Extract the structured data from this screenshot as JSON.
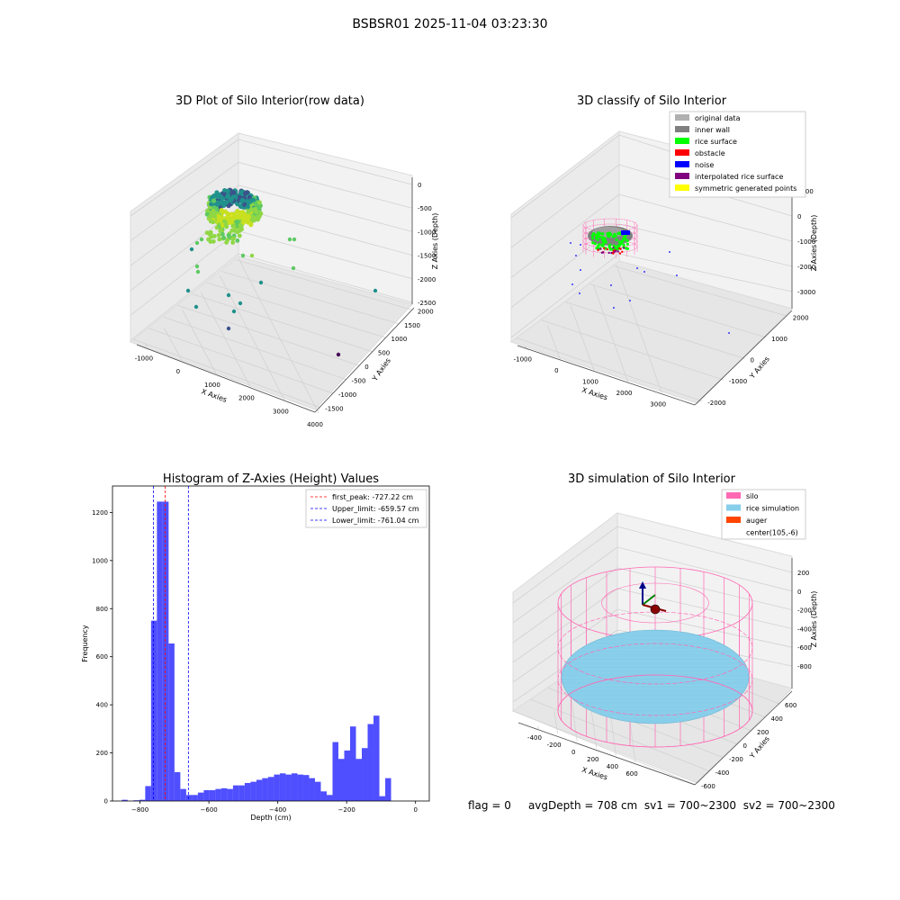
{
  "suptitle": "BSBSR01 2025-11-04 03:23:30",
  "footer": {
    "flag": "flag = 0",
    "avg_depth": "avgDepth = 708 cm",
    "sv1": "sv1 = 700~2300",
    "sv2": "sv2 = 700~2300"
  },
  "colors": {
    "hist_bar": "#4f4fff",
    "first_peak_line": "#ff0000",
    "limit_lines": "#0000ff",
    "silo_wire": "#ff69b4",
    "rice_simulation": "#87ceeb",
    "auger": "#ff4500",
    "pane": "#f0f0f0",
    "grid": "#d0d0d0"
  },
  "chart_data": [
    {
      "type": "scatter",
      "title": "3D Plot of Silo Interior(row data)",
      "xlabel": "X Axies",
      "ylabel": "Y Axies",
      "zlabel": "Z Axies (Depth)",
      "x_ticks": [
        "-1000",
        "0",
        "1000",
        "2000",
        "3000",
        "4000"
      ],
      "y_ticks": [
        "-1500",
        "-1000",
        "-500",
        "0",
        "500",
        "1000",
        "1500",
        "2000"
      ],
      "z_ticks": [
        "0",
        "-500",
        "-1000",
        "-1500",
        "-2000",
        "-2500"
      ],
      "colormap": "viridis",
      "note_points": "dense ring cluster near (0,0,-800) plus sparse outliers"
    },
    {
      "type": "scatter",
      "title": "3D classify of Silo Interior",
      "xlabel": "X Axies",
      "ylabel": "Y Axies",
      "zlabel": "Z Axies (Depth)",
      "x_ticks": [
        "-1000",
        "0",
        "1000",
        "2000",
        "3000"
      ],
      "y_ticks": [
        "-2000",
        "-1000",
        "0",
        "1000",
        "2000"
      ],
      "z_ticks": [
        "1000",
        "0",
        "-1000",
        "-2000",
        "-3000"
      ],
      "legend_position": "top-right",
      "legend": [
        {
          "label": "original data",
          "color": "#b0b0b0"
        },
        {
          "label": "inner wall",
          "color": "#808080"
        },
        {
          "label": "rice surface",
          "color": "#00ff00"
        },
        {
          "label": "obstacle",
          "color": "#ff0000"
        },
        {
          "label": "noise",
          "color": "#0000ff"
        },
        {
          "label": "interpolated rice surface",
          "color": "#800080"
        },
        {
          "label": "symmetric generated points",
          "color": "#ffff00"
        }
      ]
    },
    {
      "type": "bar",
      "title": "Histogram of Z-Axies (Height) Values",
      "xlabel": "Depth (cm)",
      "ylabel": "Frequency",
      "xlim": [
        -880,
        40
      ],
      "ylim": [
        0,
        1310
      ],
      "x_ticks": [
        -800,
        -600,
        -400,
        -200,
        0
      ],
      "y_ticks": [
        0,
        200,
        400,
        600,
        800,
        1000,
        1200
      ],
      "bin_start": -870,
      "bin_width": 17,
      "values": [
        0,
        5,
        0,
        3,
        5,
        62,
        750,
        1245,
        1245,
        655,
        120,
        50,
        25,
        25,
        35,
        45,
        45,
        50,
        53,
        50,
        65,
        65,
        75,
        80,
        88,
        95,
        100,
        110,
        115,
        110,
        115,
        110,
        108,
        95,
        80,
        40,
        25,
        245,
        175,
        210,
        310,
        175,
        220,
        320,
        355,
        20,
        95
      ],
      "vlines": [
        {
          "label": "first_peak: -727.22 cm",
          "x": -727.22,
          "style": "red-dashed"
        },
        {
          "label": "Upper_limit: -659.57 cm",
          "x": -659.57,
          "style": "blue-dashed"
        },
        {
          "label": "Lower_limit: -761.04 cm",
          "x": -761.04,
          "style": "blue-dashed"
        }
      ],
      "legend_position": "top-right"
    },
    {
      "type": "surface",
      "title": "3D simulation of Silo Interior",
      "xlabel": "X Axies",
      "ylabel": "Y Axies",
      "zlabel": "Z Axies (Depth)",
      "x_ticks": [
        "-400",
        "-200",
        "0",
        "200",
        "400",
        "600"
      ],
      "y_ticks": [
        "-600",
        "-400",
        "-200",
        "0",
        "200",
        "400",
        "600"
      ],
      "z_ticks": [
        "200",
        "0",
        "-200",
        "-400",
        "-600",
        "-800"
      ],
      "legend_position": "top-right",
      "legend": [
        {
          "label": "silo",
          "color": "#ff69b4"
        },
        {
          "label": "rice simulation",
          "color": "#87ceeb"
        },
        {
          "label": "auger",
          "color": "#ff4500"
        },
        {
          "label": "center(105,-6)",
          "color": ""
        }
      ]
    }
  ]
}
